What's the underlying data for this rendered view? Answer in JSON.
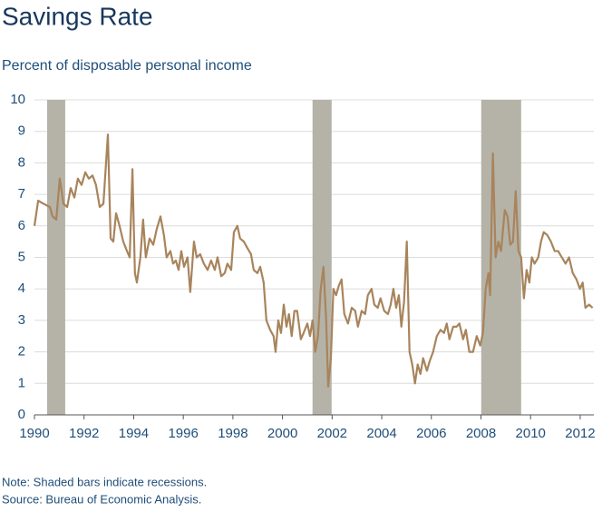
{
  "chart_data": {
    "type": "line",
    "title": "Savings Rate",
    "subtitle": "Percent of disposable personal income",
    "notes": [
      "Note: Shaded bars indicate recessions.",
      "Source: Bureau of Economic Analysis."
    ],
    "x": [
      1990.0,
      1990.15,
      1990.37,
      1990.62,
      1990.73,
      1990.88,
      1991.02,
      1991.17,
      1991.32,
      1991.46,
      1991.61,
      1991.75,
      1991.9,
      1992.05,
      1992.19,
      1992.34,
      1992.48,
      1992.63,
      1992.78,
      1992.96,
      1993.07,
      1993.18,
      1993.29,
      1993.43,
      1993.58,
      1993.73,
      1993.84,
      1993.95,
      1994.05,
      1994.13,
      1994.27,
      1994.38,
      1994.49,
      1994.64,
      1994.79,
      1994.93,
      1995.08,
      1995.22,
      1995.33,
      1995.48,
      1995.59,
      1995.7,
      1995.81,
      1995.92,
      1996.03,
      1996.17,
      1996.28,
      1996.43,
      1996.54,
      1996.68,
      1996.83,
      1996.98,
      1997.12,
      1997.27,
      1997.38,
      1997.53,
      1997.67,
      1997.78,
      1997.93,
      1998.04,
      1998.18,
      1998.29,
      1998.44,
      1998.58,
      1998.73,
      1998.84,
      1998.99,
      1999.1,
      1999.24,
      1999.35,
      1999.5,
      1999.64,
      1999.72,
      1999.83,
      1999.94,
      2000.05,
      2000.16,
      2000.26,
      2000.37,
      2000.48,
      2000.59,
      2000.74,
      2000.85,
      2001.0,
      2001.11,
      2001.21,
      2001.32,
      2001.43,
      2001.54,
      2001.65,
      2001.76,
      2001.84,
      2001.95,
      2002.05,
      2002.16,
      2002.27,
      2002.38,
      2002.49,
      2002.64,
      2002.79,
      2002.93,
      2003.04,
      2003.19,
      2003.33,
      2003.44,
      2003.59,
      2003.7,
      2003.84,
      2003.95,
      2004.1,
      2004.25,
      2004.36,
      2004.47,
      2004.58,
      2004.69,
      2004.79,
      2004.9,
      2005.01,
      2005.12,
      2005.23,
      2005.34,
      2005.45,
      2005.56,
      2005.67,
      2005.82,
      2005.93,
      2006.07,
      2006.22,
      2006.37,
      2006.51,
      2006.62,
      2006.73,
      2006.88,
      2007.02,
      2007.13,
      2007.28,
      2007.39,
      2007.53,
      2007.68,
      2007.83,
      2007.97,
      2008.08,
      2008.19,
      2008.3,
      2008.37,
      2008.48,
      2008.59,
      2008.7,
      2008.81,
      2008.96,
      2009.07,
      2009.18,
      2009.29,
      2009.4,
      2009.51,
      2009.62,
      2009.73,
      2009.84,
      2009.95,
      2010.05,
      2010.16,
      2010.31,
      2010.42,
      2010.53,
      2010.68,
      2010.82,
      2010.97,
      2011.11,
      2011.26,
      2011.41,
      2011.55,
      2011.7,
      2011.85,
      2011.99,
      2012.1,
      2012.21,
      2012.36,
      2012.5
    ],
    "values": [
      6.0,
      6.8,
      6.7,
      6.6,
      6.3,
      6.2,
      7.5,
      6.7,
      6.6,
      7.2,
      6.9,
      7.5,
      7.3,
      7.7,
      7.5,
      7.6,
      7.3,
      6.6,
      6.7,
      8.9,
      5.6,
      5.5,
      6.4,
      6.0,
      5.5,
      5.2,
      5.0,
      7.8,
      4.5,
      4.2,
      5.0,
      6.2,
      5.0,
      5.6,
      5.4,
      5.9,
      6.3,
      5.7,
      5.0,
      5.2,
      4.8,
      4.9,
      4.6,
      5.2,
      4.7,
      5.0,
      3.9,
      5.5,
      5.0,
      5.1,
      4.8,
      4.6,
      4.9,
      4.6,
      5.0,
      4.4,
      4.5,
      4.8,
      4.6,
      5.8,
      6.0,
      5.6,
      5.5,
      5.3,
      5.1,
      4.6,
      4.5,
      4.7,
      4.2,
      3.0,
      2.7,
      2.5,
      2.0,
      3.0,
      2.6,
      3.5,
      2.8,
      3.2,
      2.5,
      3.3,
      3.3,
      2.4,
      2.6,
      2.9,
      2.5,
      3.0,
      2.0,
      2.5,
      4.0,
      4.7,
      3.0,
      0.9,
      1.8,
      4.0,
      3.8,
      4.1,
      4.3,
      3.2,
      2.9,
      3.4,
      3.3,
      2.8,
      3.3,
      3.2,
      3.8,
      4.0,
      3.5,
      3.4,
      3.7,
      3.3,
      3.2,
      3.5,
      4.0,
      3.4,
      3.8,
      2.8,
      3.6,
      5.5,
      2.0,
      1.6,
      1.0,
      1.6,
      1.3,
      1.8,
      1.4,
      1.7,
      2.0,
      2.5,
      2.7,
      2.6,
      2.9,
      2.4,
      2.8,
      2.8,
      2.9,
      2.4,
      2.7,
      2.0,
      2.0,
      2.5,
      2.2,
      2.6,
      4.0,
      4.5,
      3.8,
      8.3,
      5.0,
      5.5,
      5.2,
      6.5,
      6.3,
      5.4,
      5.5,
      7.1,
      5.2,
      5.0,
      3.7,
      4.6,
      4.2,
      5.0,
      4.8,
      5.0,
      5.5,
      5.8,
      5.7,
      5.5,
      5.2,
      5.2,
      5.0,
      4.8,
      5.0,
      4.5,
      4.3,
      4.0,
      4.2,
      3.4,
      3.5,
      3.4
    ],
    "color": "#a8845c",
    "recessions": [
      [
        1990.51,
        1991.24
      ],
      [
        2001.21,
        2001.98
      ],
      [
        2008.01,
        2009.62
      ]
    ],
    "recession_color": "#b5b3a8",
    "xlim": [
      1990,
      2012.55
    ],
    "xticks": [
      1990,
      1992,
      1994,
      1996,
      1998,
      2000,
      2002,
      2004,
      2006,
      2008,
      2010,
      2012
    ],
    "ylim": [
      0,
      10
    ],
    "yticks": [
      0,
      1,
      2,
      3,
      4,
      5,
      6,
      7,
      8,
      9,
      10
    ],
    "grid": true
  }
}
